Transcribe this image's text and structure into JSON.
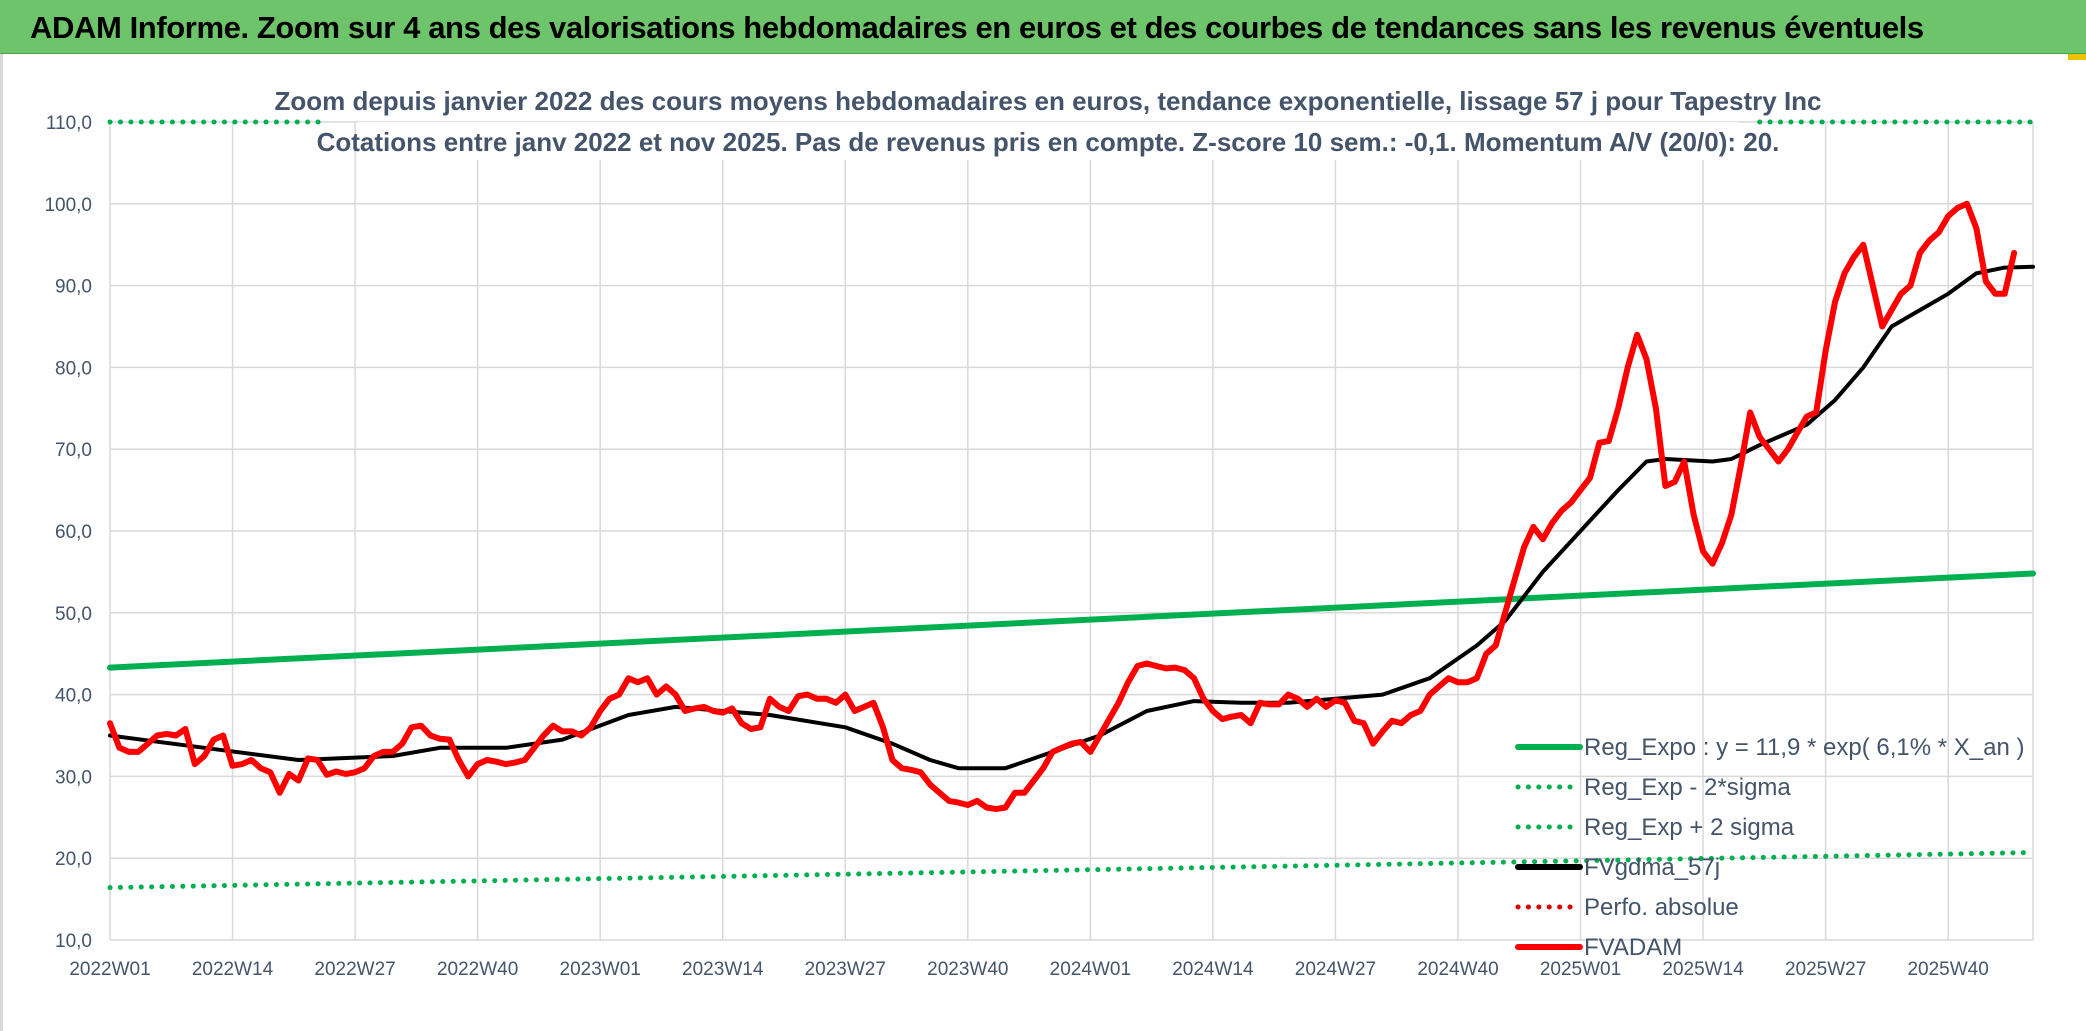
{
  "banner": {
    "title": "ADAM Informe. Zoom sur 4 ans des valorisations hebdomadaires en euros et des courbes de tendances sans les revenus éventuels"
  },
  "chart_data": {
    "type": "line",
    "title_lines": [
      "Zoom depuis janvier 2022 des cours moyens hebdomadaires en euros, tendance exponentielle, lissage 57 j pour Tapestry Inc",
      "Cotations entre janv 2022 et nov 2025. Pas de revenus pris en compte. Z-score 10 sem.: -0,1. Momentum A/V (20/0): 20."
    ],
    "ylim": [
      10,
      110
    ],
    "yticks": [
      "10,0",
      "20,0",
      "30,0",
      "40,0",
      "50,0",
      "60,0",
      "70,0",
      "80,0",
      "90,0",
      "100,0",
      "110,0"
    ],
    "n_weeks": 205,
    "xticks": [
      {
        "week": 0,
        "label": "2022W01"
      },
      {
        "week": 13,
        "label": "2022W14"
      },
      {
        "week": 26,
        "label": "2022W27"
      },
      {
        "week": 39,
        "label": "2022W40"
      },
      {
        "week": 52,
        "label": "2023W01"
      },
      {
        "week": 65,
        "label": "2023W14"
      },
      {
        "week": 78,
        "label": "2023W27"
      },
      {
        "week": 91,
        "label": "2023W40"
      },
      {
        "week": 104,
        "label": "2024W01"
      },
      {
        "week": 117,
        "label": "2024W14"
      },
      {
        "week": 130,
        "label": "2024W27"
      },
      {
        "week": 143,
        "label": "2024W40"
      },
      {
        "week": 156,
        "label": "2025W01"
      },
      {
        "week": 169,
        "label": "2025W14"
      },
      {
        "week": 182,
        "label": "2025W27"
      },
      {
        "week": 195,
        "label": "2025W40"
      }
    ],
    "legend": [
      {
        "label": "Reg_Expo : y = 11,9 * exp( 6,1% *  X_an )",
        "color": "#00b050",
        "style": "solid"
      },
      {
        "label": "Reg_Exp - 2*sigma",
        "color": "#00b050",
        "style": "dotted"
      },
      {
        "label": "Reg_Exp + 2 sigma",
        "color": "#00b050",
        "style": "dotted"
      },
      {
        "label": "FVgdma_57j",
        "color": "#000000",
        "style": "solid"
      },
      {
        "label": "Perfo. absolue",
        "color": "#e00000",
        "style": "dotted"
      },
      {
        "label": "FVADAM",
        "color": "#ff0000",
        "style": "solid"
      }
    ],
    "series": [
      {
        "name": "Reg_Expo : y = 11,9 * exp( 6,1% *  X_an )",
        "color": "#00b050",
        "style": "solid",
        "width": 6,
        "points": [
          [
            0,
            43.3
          ],
          [
            204,
            54.8
          ]
        ]
      },
      {
        "name": "Reg_Exp - 2*sigma",
        "color": "#00b050",
        "style": "dotted",
        "width": 5,
        "points": [
          [
            0,
            16.4
          ],
          [
            204,
            20.7
          ]
        ]
      },
      {
        "name": "Reg_Exp + 2 sigma",
        "color": "#00b050",
        "style": "dotted",
        "width": 5,
        "points": [
          [
            0,
            110
          ],
          [
            204,
            110
          ]
        ],
        "hidden_segment": [
          23,
          175
        ]
      },
      {
        "name": "FVgdma_57j",
        "color": "#000000",
        "style": "solid",
        "width": 4,
        "points": [
          [
            0,
            35
          ],
          [
            10,
            33.5
          ],
          [
            20,
            32
          ],
          [
            30,
            32.5
          ],
          [
            35,
            33.5
          ],
          [
            42,
            33.5
          ],
          [
            48,
            34.5
          ],
          [
            55,
            37.5
          ],
          [
            60,
            38.5
          ],
          [
            65,
            38
          ],
          [
            70,
            37.5
          ],
          [
            78,
            36
          ],
          [
            83,
            34
          ],
          [
            87,
            32
          ],
          [
            90,
            31
          ],
          [
            95,
            31
          ],
          [
            100,
            33
          ],
          [
            105,
            35
          ],
          [
            110,
            38
          ],
          [
            115,
            39.2
          ],
          [
            120,
            39
          ],
          [
            125,
            39
          ],
          [
            130,
            39.5
          ],
          [
            135,
            40
          ],
          [
            140,
            42
          ],
          [
            145,
            46
          ],
          [
            148,
            49
          ],
          [
            152,
            55
          ],
          [
            156,
            60
          ],
          [
            160,
            65
          ],
          [
            163,
            68.5
          ],
          [
            165,
            68.8
          ],
          [
            170,
            68.5
          ],
          [
            172,
            68.8
          ],
          [
            175,
            70.5
          ],
          [
            180,
            73
          ],
          [
            183,
            76
          ],
          [
            186,
            80
          ],
          [
            189,
            85
          ],
          [
            192,
            87
          ],
          [
            195,
            89
          ],
          [
            198,
            91.5
          ],
          [
            201,
            92.2
          ],
          [
            204,
            92.3
          ]
        ]
      },
      {
        "name": "FVADAM",
        "color": "#ff0000",
        "style": "solid",
        "width": 6,
        "points": [
          [
            0,
            36.5
          ],
          [
            1,
            33.5
          ],
          [
            2,
            33
          ],
          [
            3,
            33
          ],
          [
            4,
            34
          ],
          [
            5,
            35
          ],
          [
            6,
            35.2
          ],
          [
            7,
            35
          ],
          [
            8,
            35.8
          ],
          [
            9,
            31.5
          ],
          [
            10,
            32.5
          ],
          [
            11,
            34.5
          ],
          [
            12,
            35
          ],
          [
            13,
            31.3
          ],
          [
            14,
            31.5
          ],
          [
            15,
            32
          ],
          [
            16,
            31
          ],
          [
            17,
            30.5
          ],
          [
            18,
            28
          ],
          [
            19,
            30.3
          ],
          [
            20,
            29.5
          ],
          [
            21,
            32.2
          ],
          [
            22,
            32
          ],
          [
            23,
            30.2
          ],
          [
            24,
            30.6
          ],
          [
            25,
            30.3
          ],
          [
            26,
            30.5
          ],
          [
            27,
            31
          ],
          [
            28,
            32.5
          ],
          [
            29,
            33
          ],
          [
            30,
            33
          ],
          [
            31,
            34
          ],
          [
            32,
            36
          ],
          [
            33,
            36.2
          ],
          [
            34,
            35
          ],
          [
            35,
            34.6
          ],
          [
            36,
            34.5
          ],
          [
            37,
            32
          ],
          [
            38,
            30
          ],
          [
            39,
            31.5
          ],
          [
            40,
            32
          ],
          [
            41,
            31.8
          ],
          [
            42,
            31.5
          ],
          [
            43,
            31.7
          ],
          [
            44,
            32
          ],
          [
            45,
            33.5
          ],
          [
            46,
            35
          ],
          [
            47,
            36.2
          ],
          [
            48,
            35.5
          ],
          [
            49,
            35.5
          ],
          [
            50,
            35
          ],
          [
            51,
            36
          ],
          [
            52,
            38
          ],
          [
            53,
            39.5
          ],
          [
            54,
            40
          ],
          [
            55,
            42
          ],
          [
            56,
            41.5
          ],
          [
            57,
            42
          ],
          [
            58,
            40
          ],
          [
            59,
            41
          ],
          [
            60,
            40
          ],
          [
            61,
            38
          ],
          [
            62,
            38.3
          ],
          [
            63,
            38.5
          ],
          [
            64,
            38
          ],
          [
            65,
            37.8
          ],
          [
            66,
            38.3
          ],
          [
            67,
            36.5
          ],
          [
            68,
            35.8
          ],
          [
            69,
            36
          ],
          [
            70,
            39.5
          ],
          [
            71,
            38.5
          ],
          [
            72,
            38
          ],
          [
            73,
            39.8
          ],
          [
            74,
            40
          ],
          [
            75,
            39.5
          ],
          [
            76,
            39.5
          ],
          [
            77,
            39
          ],
          [
            78,
            40
          ],
          [
            79,
            38
          ],
          [
            80,
            38.5
          ],
          [
            81,
            39
          ],
          [
            82,
            36
          ],
          [
            83,
            32
          ],
          [
            84,
            31
          ],
          [
            85,
            30.8
          ],
          [
            86,
            30.5
          ],
          [
            87,
            29
          ],
          [
            88,
            28
          ],
          [
            89,
            27
          ],
          [
            90,
            26.8
          ],
          [
            91,
            26.5
          ],
          [
            92,
            27
          ],
          [
            93,
            26.2
          ],
          [
            94,
            26
          ],
          [
            95,
            26.2
          ],
          [
            96,
            28
          ],
          [
            97,
            28
          ],
          [
            98,
            29.5
          ],
          [
            99,
            31
          ],
          [
            100,
            33
          ],
          [
            101,
            33.5
          ],
          [
            102,
            34
          ],
          [
            103,
            34.2
          ],
          [
            104,
            33
          ],
          [
            105,
            35
          ],
          [
            106,
            37
          ],
          [
            107,
            39
          ],
          [
            108,
            41.5
          ],
          [
            109,
            43.5
          ],
          [
            110,
            43.8
          ],
          [
            111,
            43.5
          ],
          [
            112,
            43.2
          ],
          [
            113,
            43.3
          ],
          [
            114,
            43
          ],
          [
            115,
            42
          ],
          [
            116,
            39.5
          ],
          [
            117,
            38
          ],
          [
            118,
            37
          ],
          [
            119,
            37.3
          ],
          [
            120,
            37.5
          ],
          [
            121,
            36.5
          ],
          [
            122,
            39
          ],
          [
            123,
            38.8
          ],
          [
            124,
            38.8
          ],
          [
            125,
            40
          ],
          [
            126,
            39.5
          ],
          [
            127,
            38.5
          ],
          [
            128,
            39.5
          ],
          [
            129,
            38.5
          ],
          [
            130,
            39.3
          ],
          [
            131,
            39
          ],
          [
            132,
            36.8
          ],
          [
            133,
            36.5
          ],
          [
            134,
            34
          ],
          [
            135,
            35.5
          ],
          [
            136,
            36.8
          ],
          [
            137,
            36.5
          ],
          [
            138,
            37.5
          ],
          [
            139,
            38
          ],
          [
            140,
            40
          ],
          [
            141,
            41
          ],
          [
            142,
            42
          ],
          [
            143,
            41.5
          ],
          [
            144,
            41.5
          ],
          [
            145,
            42
          ],
          [
            146,
            45
          ],
          [
            147,
            46
          ],
          [
            148,
            50
          ],
          [
            149,
            54
          ],
          [
            150,
            58
          ],
          [
            151,
            60.5
          ],
          [
            152,
            59
          ],
          [
            153,
            61
          ],
          [
            154,
            62.5
          ],
          [
            155,
            63.5
          ],
          [
            156,
            65
          ],
          [
            157,
            66.5
          ],
          [
            158,
            70.8
          ],
          [
            159,
            71
          ],
          [
            160,
            75
          ],
          [
            161,
            80
          ],
          [
            162,
            84
          ],
          [
            163,
            81
          ],
          [
            164,
            75
          ],
          [
            165,
            65.5
          ],
          [
            166,
            66
          ],
          [
            167,
            68.5
          ],
          [
            168,
            62
          ],
          [
            169,
            57.5
          ],
          [
            170,
            56
          ],
          [
            171,
            58.5
          ],
          [
            172,
            62
          ],
          [
            173,
            68
          ],
          [
            174,
            74.5
          ],
          [
            175,
            71.5
          ],
          [
            176,
            70
          ],
          [
            177,
            68.5
          ],
          [
            178,
            70
          ],
          [
            179,
            72
          ],
          [
            180,
            74
          ],
          [
            181,
            74.5
          ],
          [
            182,
            82
          ],
          [
            183,
            88
          ],
          [
            184,
            91.5
          ],
          [
            185,
            93.5
          ],
          [
            186,
            95
          ],
          [
            187,
            90
          ],
          [
            188,
            85
          ],
          [
            189,
            87
          ],
          [
            190,
            89
          ],
          [
            191,
            90
          ],
          [
            192,
            94
          ],
          [
            193,
            95.5
          ],
          [
            194,
            96.5
          ],
          [
            195,
            98.5
          ],
          [
            196,
            99.5
          ],
          [
            197,
            100
          ],
          [
            198,
            97
          ],
          [
            199,
            90.5
          ],
          [
            200,
            89
          ],
          [
            201,
            89
          ],
          [
            202,
            94
          ]
        ]
      }
    ],
    "grid": true
  }
}
